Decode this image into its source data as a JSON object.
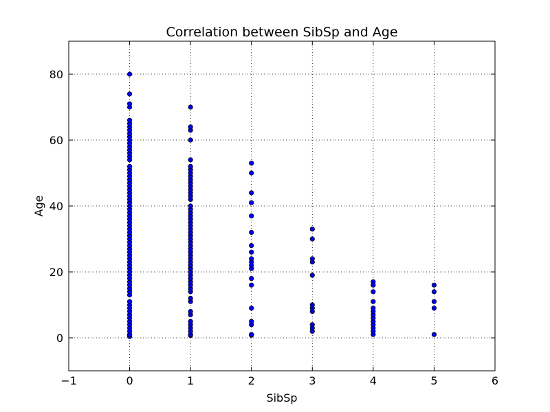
{
  "chart_data": {
    "type": "scatter",
    "title": "Correlation between SibSp and Age",
    "xlabel": "SibSp",
    "ylabel": "Age",
    "xlim": [
      -1,
      6
    ],
    "ylim": [
      -10,
      90
    ],
    "xticks": [
      "−1",
      "0",
      "1",
      "2",
      "3",
      "4",
      "5",
      "6"
    ],
    "xtick_values": [
      -1,
      0,
      1,
      2,
      3,
      4,
      5,
      6
    ],
    "yticks": [
      "0",
      "20",
      "40",
      "60",
      "80"
    ],
    "ytick_values": [
      0,
      20,
      40,
      60,
      80
    ],
    "grid": true,
    "marker_color": "#0000ff",
    "series": [
      {
        "x": 0,
        "y": [
          0.4,
          0.9,
          1,
          2,
          3,
          4,
          5,
          6,
          7,
          8,
          9,
          10,
          11,
          13,
          14,
          15,
          16,
          17,
          18,
          19,
          20,
          21,
          22,
          23,
          24,
          25,
          26,
          27,
          28,
          29,
          30,
          31,
          32,
          33,
          34,
          35,
          36,
          37,
          38,
          39,
          40,
          41,
          42,
          43,
          44,
          45,
          46,
          47,
          48,
          49,
          50,
          51,
          52,
          54,
          55,
          56,
          57,
          58,
          59,
          60,
          61,
          62,
          63,
          64,
          65,
          66,
          70,
          71,
          74,
          80
        ]
      },
      {
        "x": 1,
        "y": [
          0.7,
          1,
          2,
          3,
          4,
          5,
          7,
          8,
          11,
          12,
          14,
          15,
          16,
          17,
          18,
          19,
          20,
          21,
          22,
          23,
          24,
          25,
          26,
          27,
          28,
          29,
          30,
          31,
          32,
          33,
          34,
          35,
          36,
          37,
          38,
          39,
          40,
          42,
          43,
          44,
          45,
          46,
          47,
          48,
          49,
          50,
          51,
          52,
          54,
          60,
          63,
          64,
          70
        ]
      },
      {
        "x": 2,
        "y": [
          0.8,
          1,
          4,
          5,
          9,
          16,
          18,
          21,
          22,
          23,
          24,
          26,
          28,
          32,
          37,
          41,
          44,
          50,
          53
        ]
      },
      {
        "x": 3,
        "y": [
          2,
          3,
          4,
          8,
          9,
          10,
          19,
          23,
          24,
          30,
          33
        ]
      },
      {
        "x": 4,
        "y": [
          1,
          2,
          3,
          4,
          5,
          6,
          7,
          8,
          9,
          11,
          14,
          16,
          17
        ]
      },
      {
        "x": 5,
        "y": [
          1,
          9,
          11,
          14,
          16
        ]
      }
    ]
  }
}
